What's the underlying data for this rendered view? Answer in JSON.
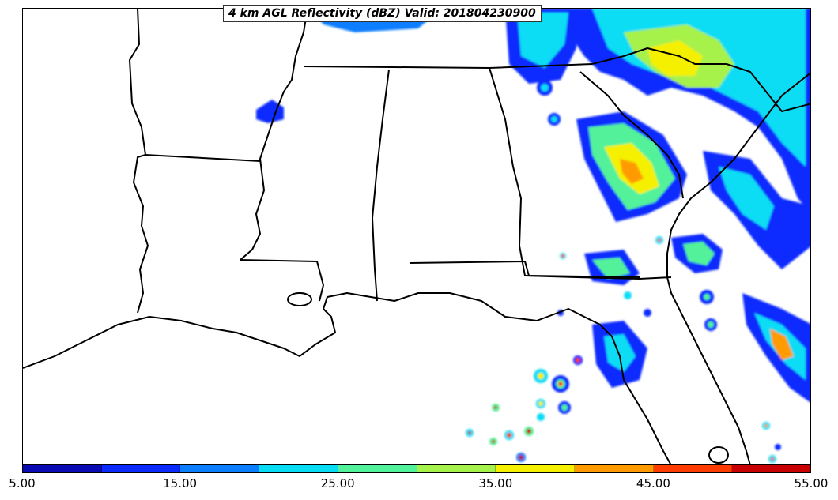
{
  "map": {
    "title": "4 km AGL Reflectivity (dBZ) Valid: 201804230900",
    "field": "reflectivity",
    "units": "dBZ",
    "valid_time": "201804230900"
  },
  "colorbar": {
    "min": 5,
    "max": 55,
    "interval": 5,
    "colors": [
      "#0a0ab4",
      "#0a2aff",
      "#0a7eff",
      "#07dcf5",
      "#52f29a",
      "#a6f24c",
      "#f5f000",
      "#ff9b00",
      "#ff3b00",
      "#c80000"
    ],
    "tick_labels": [
      "5.00",
      "15.00",
      "25.00",
      "35.00",
      "45.00",
      "55.00"
    ]
  }
}
